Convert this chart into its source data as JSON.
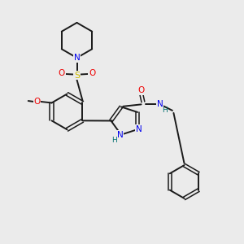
{
  "background_color": "#ebebeb",
  "bond_color": "#1a1a1a",
  "N_color": "#0000ee",
  "O_color": "#ee0000",
  "S_color": "#ccbb00",
  "H_color": "#007070",
  "figsize": [
    3.0,
    3.0
  ],
  "dpi": 100,
  "xlim": [
    0,
    10
  ],
  "ylim": [
    0,
    10
  ]
}
